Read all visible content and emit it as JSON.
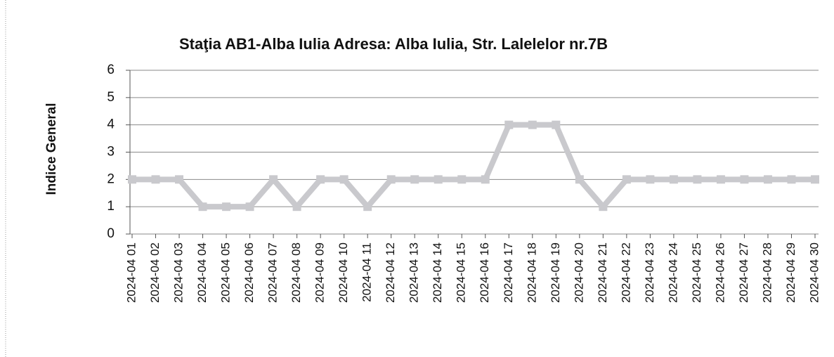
{
  "chart_data": {
    "type": "line",
    "title": "Staţia AB1-Alba Iulia  Adresa: Alba Iulia, Str. Lalelelor nr.7B",
    "y_label": "Indice General",
    "categories": [
      "2024-04 01",
      "2024-04 02",
      "2024-04 03",
      "2024-04 04",
      "2024-04 05",
      "2024-04 06",
      "2024-04 07",
      "2024-04 08",
      "2024-04 09",
      "2024-04 10",
      "2024-04 11",
      "2024-04 12",
      "2024-04 13",
      "2024-04 14",
      "2024-04 15",
      "2024-04 16",
      "2024-04 17",
      "2024-04 18",
      "2024-04 19",
      "2024-04 20",
      "2024-04 21",
      "2024-04 22",
      "2024-04 23",
      "2024-04 24",
      "2024-04 25",
      "2024-04 26",
      "2024-04 27",
      "2024-04 28",
      "2024-04 29",
      "2024-04 30"
    ],
    "values": [
      2,
      2,
      2,
      1,
      1,
      1,
      2,
      1,
      2,
      2,
      1,
      2,
      2,
      2,
      2,
      2,
      4,
      4,
      4,
      2,
      1,
      2,
      2,
      2,
      2,
      2,
      2,
      2,
      2,
      2
    ],
    "color": "#c9c9cd",
    "ylim": [
      0,
      6
    ],
    "yticks": [
      0,
      1,
      2,
      3,
      4,
      5,
      6
    ],
    "grid": true
  }
}
